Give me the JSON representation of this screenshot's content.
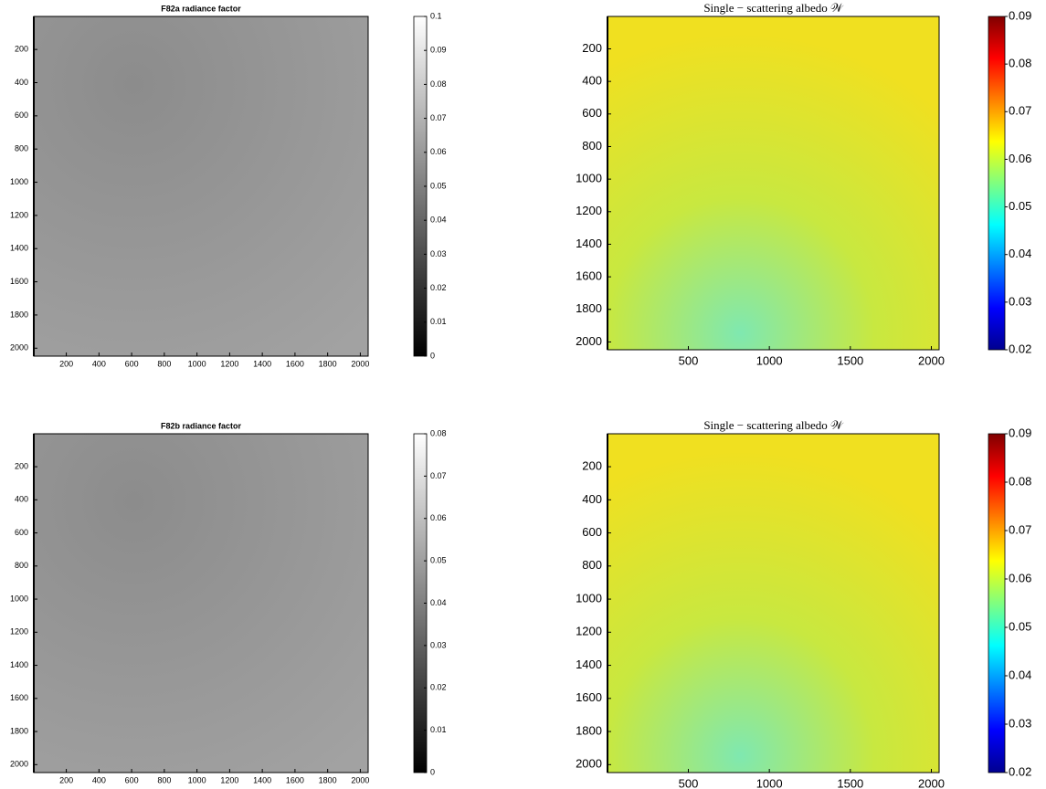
{
  "chart_data": [
    {
      "type": "image",
      "title": "F82a radiance factor",
      "xlim": [
        1,
        2048
      ],
      "ylim": [
        1,
        2048
      ],
      "yreverse": true,
      "xticks": [
        200,
        400,
        600,
        800,
        1000,
        1200,
        1400,
        1600,
        1800,
        2000
      ],
      "yticks": [
        200,
        400,
        600,
        800,
        1000,
        1200,
        1400,
        1600,
        1800,
        2000
      ],
      "colormap": "gray",
      "clim": [
        0,
        0.1
      ],
      "cticks": [
        0,
        0.01,
        0.02,
        0.03,
        0.04,
        0.05,
        0.06,
        0.07,
        0.08,
        0.09,
        0.1
      ]
    },
    {
      "type": "image",
      "title": "Single − scattering albedo 𝒲",
      "xlim": [
        1,
        2048
      ],
      "ylim": [
        1,
        2048
      ],
      "yreverse": true,
      "xticks": [
        500,
        1000,
        1500,
        2000
      ],
      "yticks": [
        200,
        400,
        600,
        800,
        1000,
        1200,
        1400,
        1600,
        1800,
        2000
      ],
      "colormap": "jet",
      "clim": [
        0.02,
        0.09
      ],
      "cticks": [
        0.02,
        0.03,
        0.04,
        0.05,
        0.06,
        0.07,
        0.08,
        0.09
      ]
    },
    {
      "type": "image",
      "title": "F82b radiance factor",
      "xlim": [
        1,
        2048
      ],
      "ylim": [
        1,
        2048
      ],
      "yreverse": true,
      "xticks": [
        200,
        400,
        600,
        800,
        1000,
        1200,
        1400,
        1600,
        1800,
        2000
      ],
      "yticks": [
        200,
        400,
        600,
        800,
        1000,
        1200,
        1400,
        1600,
        1800,
        2000
      ],
      "colormap": "gray",
      "clim": [
        0,
        0.08
      ],
      "cticks": [
        0,
        0.01,
        0.02,
        0.03,
        0.04,
        0.05,
        0.06,
        0.07,
        0.08
      ]
    },
    {
      "type": "image",
      "title": "Single − scattering albedo 𝒲",
      "xlim": [
        1,
        2048
      ],
      "ylim": [
        1,
        2048
      ],
      "yreverse": true,
      "xticks": [
        500,
        1000,
        1500,
        2000
      ],
      "yticks": [
        200,
        400,
        600,
        800,
        1000,
        1200,
        1400,
        1600,
        1800,
        2000
      ],
      "colormap": "jet",
      "clim": [
        0.02,
        0.09
      ],
      "cticks": [
        0.02,
        0.03,
        0.04,
        0.05,
        0.06,
        0.07,
        0.08,
        0.09
      ]
    }
  ]
}
